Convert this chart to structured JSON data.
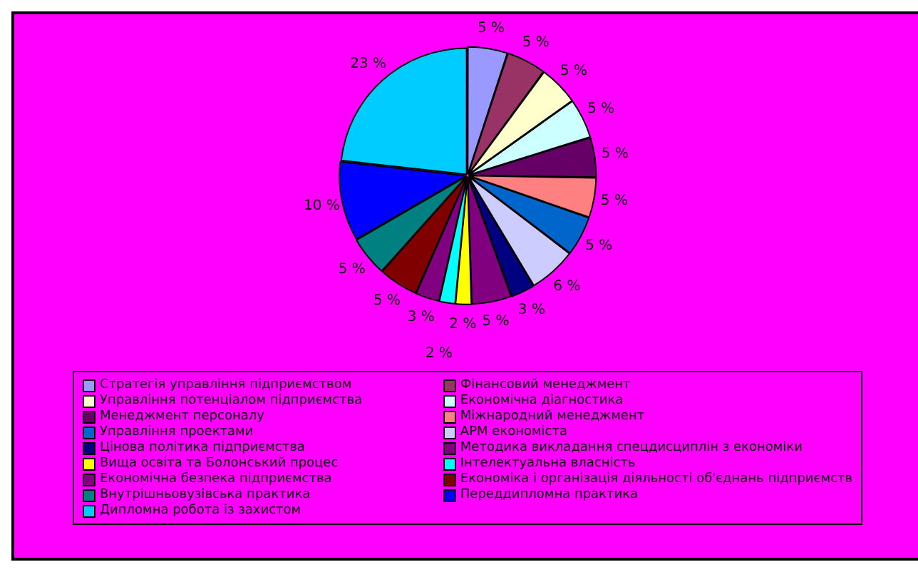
{
  "chart_data": {
    "type": "pie",
    "legend": "bottom",
    "categories": [
      "Стратегія управління підприємством",
      "Фінансовий менеджмент",
      "Управління потенціалом підприємства",
      "Економічна діагностика",
      "Менеджмент персоналу",
      "Міжнародний менеджмент",
      "Управління проектами",
      "АРМ економіста",
      "Цінова політика підприємства",
      "Методика викладання спецдисциплін з економіки",
      "Вища освіта та Болонський процес",
      "Інтелектуальна власність",
      "Економічна безпека підприємства",
      "Економіка і організація діяльності об'єднань підприємств",
      "Внутрішньовузівська практика",
      "Переддипломна практика",
      "Дипломна робота із захистом"
    ],
    "values": [
      5,
      5,
      5,
      5,
      5,
      5,
      5,
      6,
      3,
      5,
      2,
      2,
      3,
      5,
      5,
      10,
      23
    ],
    "value_labels": [
      "5 %",
      "5 %",
      "5 %",
      "5 %",
      "5 %",
      "5 %",
      "5 %",
      "6 %",
      "3 %",
      "5 %",
      "2 %",
      "2 %",
      "3 %",
      "5 %",
      "5 %",
      "10 %",
      "23 %"
    ],
    "colors": [
      "#9999ff",
      "#993366",
      "#ffffcc",
      "#ccffff",
      "#660066",
      "#ff8080",
      "#0066cc",
      "#ccccff",
      "#000080",
      "#800080",
      "#ffff00",
      "#00ffff",
      "#800080",
      "#800000",
      "#008080",
      "#0000ff",
      "#00ccff"
    ]
  }
}
